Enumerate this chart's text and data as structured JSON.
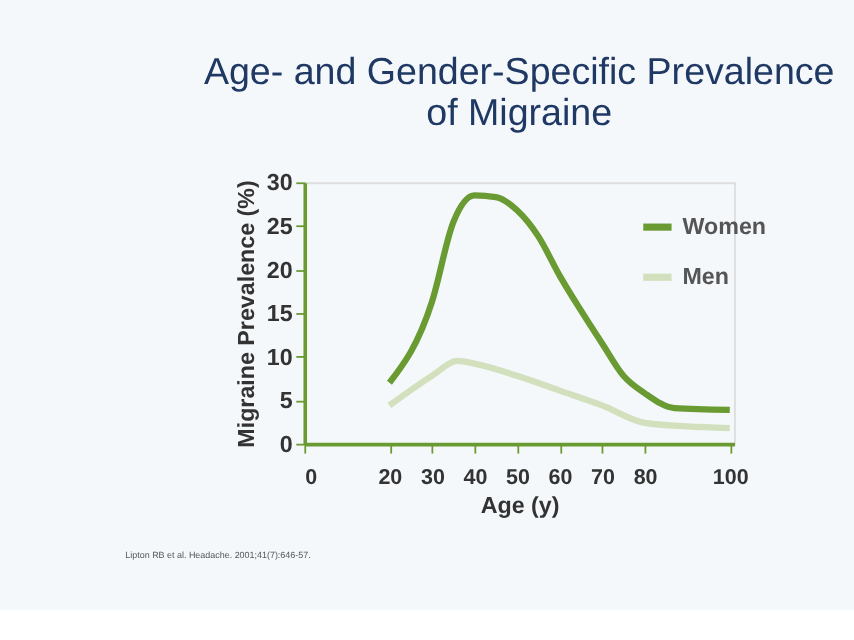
{
  "chart_data": {
    "type": "line",
    "title": "Age- and Gender-Specific Prevalence\nof Migraine",
    "xlabel": "Age (y)",
    "ylabel": "Migraine Prevalence (%)",
    "xlim": [
      0,
      101
    ],
    "xticks": [
      0,
      20,
      30,
      40,
      50,
      60,
      70,
      80,
      100
    ],
    "ylim": [
      0,
      30
    ],
    "yticks": [
      0,
      5,
      10,
      15,
      20,
      25,
      30
    ],
    "grid": false,
    "legend": "top right",
    "marker": "none",
    "line_style": "solid",
    "series": [
      {
        "name": "Women",
        "color": "#6a9a32",
        "x": [
          20,
          30,
          35,
          40,
          45,
          50,
          55,
          60,
          65,
          70,
          75,
          80,
          87,
          100
        ],
        "values": [
          7,
          16.3,
          25.4,
          28.5,
          28.3,
          26.8,
          23.8,
          19.3,
          15.3,
          11.5,
          7.8,
          5.8,
          4.1,
          3.9
        ]
      },
      {
        "name": "Men",
        "color": "#d3e0bd",
        "x": [
          20,
          30,
          36,
          40,
          50,
          60,
          70,
          80,
          90,
          100
        ],
        "values": [
          4.4,
          7.8,
          9.5,
          9.2,
          7.8,
          6.1,
          4.4,
          2.4,
          2.0,
          1.8
        ]
      }
    ],
    "annotations": [
      "Lipton RB et al. Headache. 2001;41(7):646-57."
    ]
  }
}
